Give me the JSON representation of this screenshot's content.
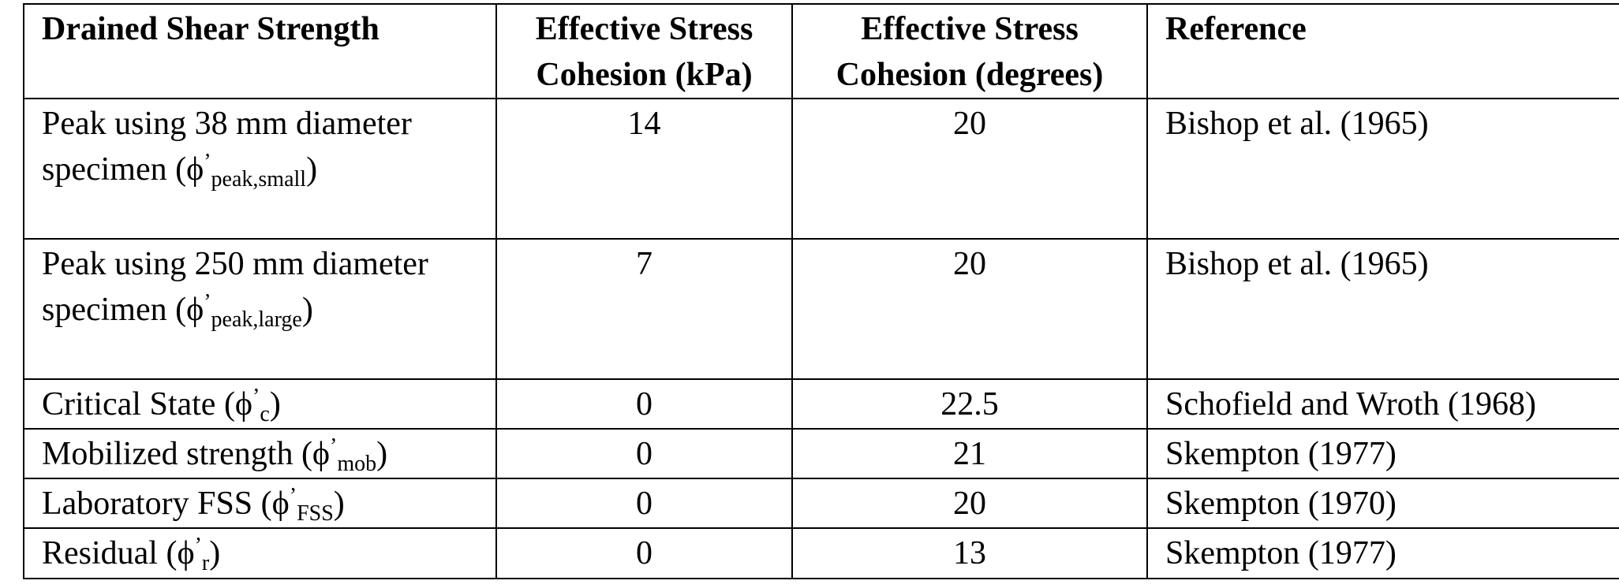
{
  "table": {
    "headers": [
      "Drained Shear Strength",
      "Effective Stress Cohesion (kPa)",
      "Effective Stress Cohesion (degrees)",
      "Reference"
    ],
    "rows": [
      [
        {
          "before": "Peak using 38 mm diameter specimen (ϕ",
          "superscript": "’",
          "subscript": "peak,small",
          "after": ")"
        },
        14,
        20,
        "Bishop et al. (1965)"
      ],
      [
        {
          "before": "Peak using 250 mm diameter specimen (ϕ",
          "superscript": "’",
          "subscript": "peak,large",
          "after": ")"
        },
        7,
        20,
        "Bishop et al. (1965)"
      ],
      [
        {
          "before": "Critical State (ϕ",
          "superscript": "’",
          "subscript": "c",
          "after": ")"
        },
        0,
        22.5,
        "Schofield and Wroth (1968)"
      ],
      [
        {
          "before": "Mobilized strength (ϕ",
          "superscript": "’",
          "subscript": "mob",
          "after": ")"
        },
        0,
        21,
        "Skempton (1977)"
      ],
      [
        {
          "before": "Laboratory FSS (ϕ",
          "superscript": "’",
          "subscript": "FSS",
          "after": ")"
        },
        0,
        20,
        "Skempton (1970)"
      ],
      [
        {
          "before": "Residual (ϕ",
          "superscript": "’",
          "subscript": "r",
          "after": ")"
        },
        0,
        13,
        "Skempton (1977)"
      ]
    ]
  }
}
